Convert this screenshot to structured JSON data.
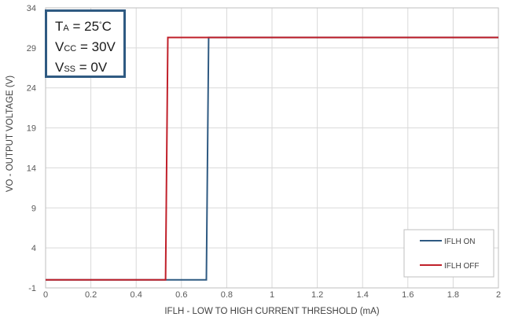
{
  "chart_data": {
    "type": "line",
    "xlabel": "IFLH - LOW TO HIGH CURRENT THRESHOLD (mA)",
    "ylabel": "VO - OUTPUT VOLTAGE (V)",
    "xlim": [
      0,
      2
    ],
    "ylim": [
      -1,
      34
    ],
    "x_ticks": [
      "0",
      "0.2",
      "0.4",
      "0.6",
      "0.8",
      "1",
      "1.2",
      "1.4",
      "1.6",
      "1.8",
      "2"
    ],
    "y_ticks": [
      "-1",
      "4",
      "9",
      "14",
      "19",
      "24",
      "29",
      "34"
    ],
    "grid": true,
    "legend_position": "bottom-right",
    "series": [
      {
        "name": "IFLH ON",
        "color": "#2f5a82",
        "x": [
          0,
          0.71,
          0.72,
          2
        ],
        "y": [
          0,
          0,
          30.3,
          30.3
        ]
      },
      {
        "name": "IFLH OFF",
        "color": "#c0202a",
        "x": [
          0,
          0.53,
          0.54,
          2
        ],
        "y": [
          0,
          0,
          30.3,
          30.3
        ]
      }
    ],
    "annotation": {
      "ta": {
        "main": "T",
        "sub": "A",
        "rest": " = 25",
        "deg": "°",
        "unit": "C"
      },
      "vcc": {
        "main": "V",
        "sub": "CC",
        "rest": " = 30V"
      },
      "vss": {
        "main": "V",
        "sub": "SS",
        "rest": " = 0V"
      }
    }
  }
}
